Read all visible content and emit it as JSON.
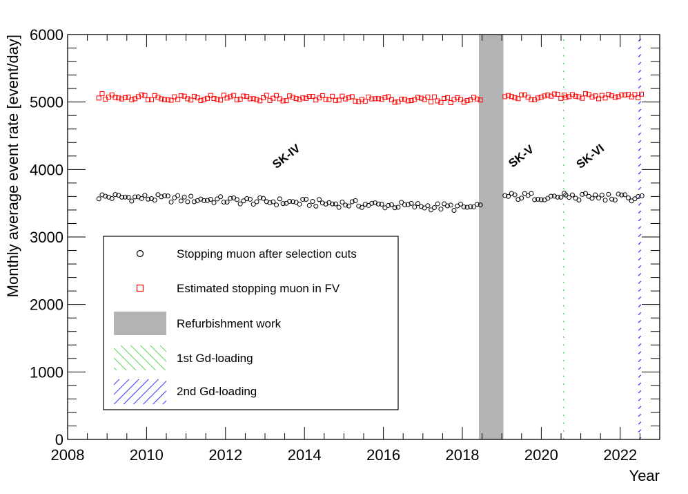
{
  "chart_data": {
    "type": "scatter",
    "xlabel": "Year",
    "ylabel": "Monthly average event rate [event/day]",
    "xlim": [
      2008,
      2023
    ],
    "ylim": [
      0,
      6000
    ],
    "x_ticks": [
      2008,
      2010,
      2012,
      2014,
      2016,
      2018,
      2020,
      2022
    ],
    "y_ticks": [
      0,
      1000,
      2000,
      3000,
      4000,
      5000,
      6000
    ],
    "x_tick_labels": [
      "2008",
      "2010",
      "2012",
      "2014",
      "2016",
      "2018",
      "2020",
      "2022"
    ],
    "y_tick_labels": [
      "0",
      "1000",
      "2000",
      "3000",
      "4000",
      "5000",
      "6000"
    ],
    "series": [
      {
        "name": "Stopping muon after selection cuts",
        "marker": "open-circle",
        "color": "#000000",
        "segments": [
          {
            "x_start": 2008.79,
            "x_end": 2018.42,
            "base": 3600,
            "end": 3430
          },
          {
            "x_start": 2019.08,
            "x_end": 2020.55,
            "base": 3600,
            "end": 3600
          },
          {
            "x_start": 2020.62,
            "x_end": 2022.45,
            "base": 3600,
            "end": 3580
          }
        ],
        "last_point": {
          "x": 2022.55,
          "y": 3610
        }
      },
      {
        "name": "Estimated stopping muon in FV",
        "marker": "open-square",
        "color": "#ff0000",
        "segments": [
          {
            "x_start": 2008.79,
            "x_end": 2018.42,
            "base": 5080,
            "end": 5030
          },
          {
            "x_start": 2019.08,
            "x_end": 2020.55,
            "base": 5070,
            "end": 5080
          },
          {
            "x_start": 2020.62,
            "x_end": 2022.55,
            "base": 5080,
            "end": 5100
          }
        ]
      }
    ],
    "bands": [
      {
        "name": "Refurbishment work",
        "x_start": 2018.42,
        "x_end": 2019.04,
        "color": "#b3b3b3",
        "style": "solid"
      },
      {
        "name": "1st Gd-loading",
        "x_start": 2020.55,
        "x_end": 2020.62,
        "color": "#33cc33",
        "style": "hatch-forward"
      },
      {
        "name": "2nd Gd-loading",
        "x_start": 2022.45,
        "x_end": 2022.55,
        "color": "#0000ff",
        "style": "hatch-back"
      }
    ],
    "annotations": [
      {
        "text": "SK-IV",
        "x": 2013.6,
        "y": 4150
      },
      {
        "text": "SK-V",
        "x": 2019.55,
        "y": 4150
      },
      {
        "text": "SK-VI",
        "x": 2021.3,
        "y": 4150
      }
    ],
    "legend": {
      "placement": "lower-left",
      "entries": [
        {
          "label": "Stopping muon after selection cuts",
          "symbol": "open-circle",
          "color": "#000000"
        },
        {
          "label": "Estimated stopping muon in FV",
          "symbol": "open-square",
          "color": "#ff0000"
        },
        {
          "label": "Refurbishment work",
          "symbol": "filled-box",
          "color": "#b3b3b3"
        },
        {
          "label": "1st Gd-loading",
          "symbol": "hatch-forward",
          "color": "#33cc33"
        },
        {
          "label": "2nd Gd-loading",
          "symbol": "hatch-back",
          "color": "#0000ff"
        }
      ]
    }
  }
}
